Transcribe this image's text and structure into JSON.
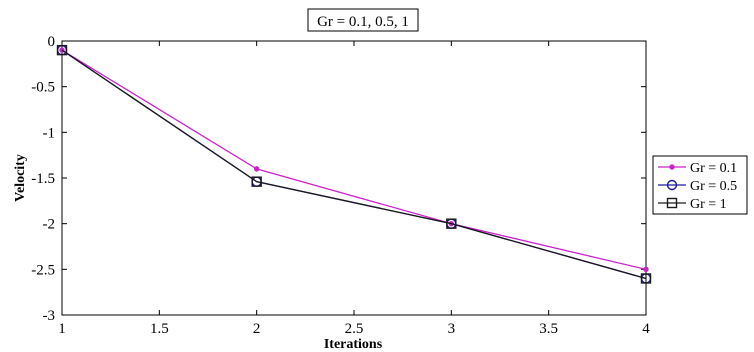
{
  "chart_data": {
    "type": "line",
    "title": "Gr = 0.1, 0.5, 1",
    "xlabel": "Iterations",
    "ylabel": "Velocity",
    "xlim": [
      1,
      4
    ],
    "ylim": [
      -3,
      0
    ],
    "xticks": [
      1,
      1.5,
      2,
      2.5,
      3,
      3.5,
      4
    ],
    "xtick_labels": [
      "1",
      "1.5",
      "2",
      "2.5",
      "3",
      "3.5",
      "4"
    ],
    "yticks": [
      0,
      -0.5,
      -1,
      -1.5,
      -2,
      -2.5,
      -3
    ],
    "ytick_labels": [
      "0",
      "-0.5",
      "-1",
      "-1.5",
      "-2",
      "-2.5",
      "-3"
    ],
    "grid": false,
    "legend_position": "right",
    "x": [
      1,
      2,
      3,
      4
    ],
    "series": [
      {
        "name": "Gr = 0.1",
        "values": [
          -0.1,
          -1.4,
          -2.0,
          -2.5
        ],
        "color": "#cc22cc",
        "marker": "dot"
      },
      {
        "name": "Gr = 0.5",
        "values": [
          -0.1,
          -1.54,
          -2.0,
          -2.6
        ],
        "color": "#1a1aa0",
        "marker": "circle"
      },
      {
        "name": "Gr = 1",
        "values": [
          -0.1,
          -1.54,
          -2.0,
          -2.6
        ],
        "color": "#1a1a1a",
        "marker": "square"
      }
    ]
  }
}
